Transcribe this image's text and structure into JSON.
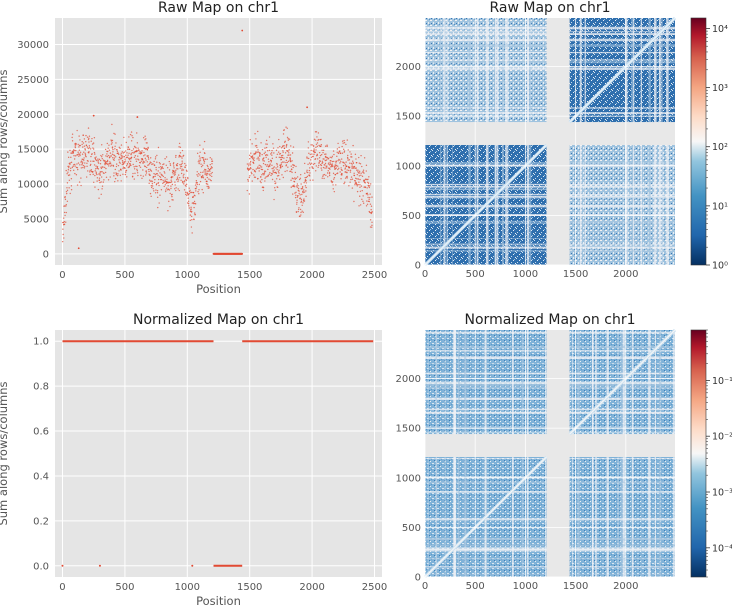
{
  "figure": {
    "background": "#ffffff",
    "panel_background": "#e5e5e5",
    "grid_color": "#ffffff",
    "point_color": "#e24a33"
  },
  "chart_data": [
    {
      "type": "scatter",
      "title": "Raw Map on chr1",
      "xlabel": "Position",
      "ylabel": "Sum along rows/columns",
      "xlim": [
        -60,
        2560
      ],
      "ylim": [
        -1600,
        33800
      ],
      "xticks": [
        0,
        500,
        1000,
        1500,
        2000,
        2500
      ],
      "xtick_labels": [
        "0",
        "500",
        "1000",
        "1500",
        "2000",
        "2500"
      ],
      "yticks": [
        0,
        5000,
        10000,
        15000,
        20000,
        25000,
        30000
      ],
      "ytick_labels": [
        "0",
        "5000",
        "10000",
        "15000",
        "20000",
        "25000",
        "30000"
      ],
      "profile": {
        "x": [
          0,
          20,
          40,
          60,
          100,
          150,
          200,
          250,
          300,
          350,
          400,
          450,
          500,
          550,
          600,
          650,
          700,
          750,
          800,
          850,
          900,
          950,
          1000,
          1030,
          1060,
          1080,
          1100,
          1150,
          1200
        ],
        "y": [
          2000,
          6500,
          10500,
          12500,
          14000,
          13500,
          14500,
          13500,
          11000,
          13000,
          15000,
          12500,
          13000,
          14500,
          13500,
          14000,
          12000,
          10500,
          11500,
          10000,
          11500,
          13000,
          9000,
          6000,
          7000,
          11000,
          12500,
          12000,
          12000
        ]
      },
      "profile2": {
        "x": [
          1480,
          1500,
          1550,
          1600,
          1650,
          1700,
          1750,
          1800,
          1850,
          1880,
          1920,
          1950,
          2000,
          2050,
          2100,
          2150,
          2200,
          2250,
          2300,
          2350,
          2400,
          2450,
          2480
        ],
        "y": [
          10000,
          13000,
          13500,
          12500,
          13500,
          12000,
          13500,
          14500,
          12000,
          8500,
          7500,
          11000,
          14000,
          15000,
          13000,
          12000,
          13500,
          13000,
          12500,
          11500,
          10000,
          8500,
          6000
        ]
      },
      "gap_x": [
        1210,
        1440
      ],
      "gap_y": 0,
      "outliers": [
        {
          "x": 1440,
          "y": 32000
        },
        {
          "x": 250,
          "y": 19800
        },
        {
          "x": 600,
          "y": 19600
        },
        {
          "x": 1960,
          "y": 21000
        },
        {
          "x": 130,
          "y": 800
        }
      ]
    },
    {
      "type": "heatmap",
      "title": "Raw Map on chr1",
      "xlim": [
        0,
        2490
      ],
      "ylim": [
        0,
        2490
      ],
      "xticks": [
        0,
        500,
        1000,
        1500,
        2000
      ],
      "xtick_labels": [
        "0",
        "500",
        "1000",
        "1500",
        "2000"
      ],
      "yticks": [
        0,
        500,
        1000,
        1500,
        2000
      ],
      "ytick_labels": [
        "0",
        "500",
        "1000",
        "1500",
        "2000"
      ],
      "gap": [
        1210,
        1440
      ],
      "colorbar": {
        "colormap": "RdBu_r",
        "scale": "log",
        "ticks": [
          1,
          10,
          100,
          1000,
          10000
        ],
        "tick_labels": [
          "10⁰",
          "10¹",
          "10²",
          "10³",
          "10⁴"
        ],
        "range": [
          1,
          15000
        ]
      }
    },
    {
      "type": "scatter",
      "title": "Normalized Map on chr1",
      "xlabel": "Position",
      "ylabel": "Sum along rows/columns",
      "xlim": [
        -60,
        2560
      ],
      "ylim": [
        -0.05,
        1.05
      ],
      "xticks": [
        0,
        500,
        1000,
        1500,
        2000,
        2500
      ],
      "xtick_labels": [
        "0",
        "500",
        "1000",
        "1500",
        "2000",
        "2500"
      ],
      "yticks": [
        0.0,
        0.2,
        0.4,
        0.6,
        0.8,
        1.0
      ],
      "ytick_labels": [
        "0.0",
        "0.2",
        "0.4",
        "0.6",
        "0.8",
        "1.0"
      ],
      "segments": [
        {
          "x": [
            0,
            1210
          ],
          "y": 1.0
        },
        {
          "x": [
            1440,
            2490
          ],
          "y": 1.0
        },
        {
          "x": [
            1210,
            1440
          ],
          "y": 0.0
        }
      ],
      "outliers": [
        {
          "x": 0,
          "y": 0.0
        },
        {
          "x": 300,
          "y": 0.0
        },
        {
          "x": 1040,
          "y": 0.0
        }
      ]
    },
    {
      "type": "heatmap",
      "title": "Normalized Map on chr1",
      "xlim": [
        0,
        2490
      ],
      "ylim": [
        0,
        2490
      ],
      "xticks": [
        0,
        500,
        1000,
        1500,
        2000
      ],
      "xtick_labels": [
        "0",
        "500",
        "1000",
        "1500",
        "2000"
      ],
      "yticks": [
        0,
        500,
        1000,
        1500,
        2000
      ],
      "ytick_labels": [
        "0",
        "500",
        "1000",
        "1500",
        "2000"
      ],
      "gap": [
        1210,
        1440
      ],
      "colorbar": {
        "colormap": "RdBu_r",
        "scale": "log",
        "ticks": [
          0.0001,
          0.001,
          0.01,
          0.1
        ],
        "tick_labels": [
          "10⁻⁴",
          "10⁻³",
          "10⁻²",
          "10⁻¹"
        ],
        "range": [
          3e-05,
          0.8
        ]
      }
    }
  ]
}
